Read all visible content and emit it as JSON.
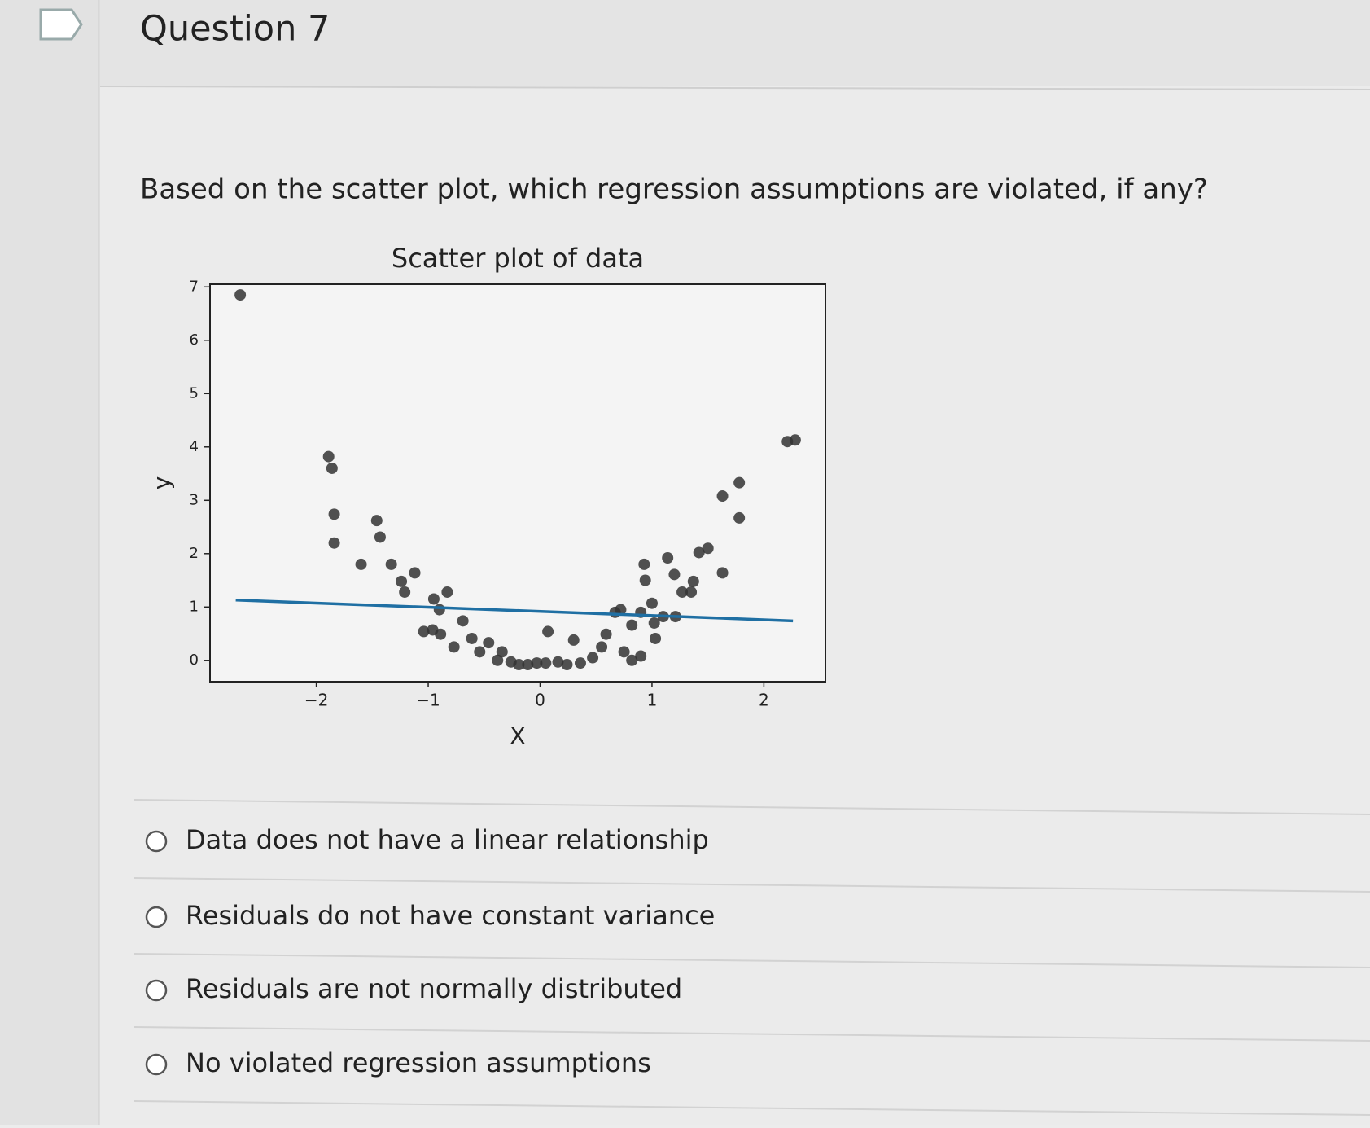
{
  "header": {
    "title": "Question 7"
  },
  "question": "Based on the scatter plot, which regression assumptions are violated, if any?",
  "chart_data": {
    "type": "scatter",
    "title": "Scatter plot of data",
    "x_label": "X",
    "y_label": "y",
    "x": [
      -2.68,
      -1.89,
      -1.86,
      -1.84,
      -1.84,
      -1.6,
      -1.46,
      -1.43,
      -1.33,
      -1.24,
      -1.21,
      -1.12,
      -0.95,
      -0.83,
      -0.9,
      -1.04,
      -0.96,
      -0.89,
      -0.77,
      -0.69,
      -0.61,
      -0.54,
      -0.46,
      -0.38,
      -0.34,
      -0.26,
      -0.19,
      -0.11,
      -0.03,
      0.07,
      0.05,
      0.16,
      0.24,
      0.3,
      0.36,
      0.47,
      0.55,
      0.59,
      0.67,
      0.72,
      0.75,
      0.82,
      0.9,
      0.82,
      0.9,
      0.93,
      0.94,
      1.0,
      1.03,
      1.02,
      1.1,
      1.14,
      1.2,
      1.21,
      1.27,
      1.35,
      1.37,
      1.42,
      1.5,
      1.63,
      1.63,
      1.78,
      1.78,
      2.21,
      2.28
    ],
    "values": [
      6.85,
      3.82,
      3.6,
      2.74,
      2.2,
      1.8,
      2.62,
      2.31,
      1.8,
      1.48,
      1.28,
      1.64,
      1.15,
      1.28,
      0.95,
      0.54,
      0.57,
      0.49,
      0.25,
      0.74,
      0.41,
      0.16,
      0.33,
      0.0,
      0.16,
      -0.03,
      -0.08,
      -0.08,
      -0.05,
      0.54,
      -0.05,
      -0.03,
      -0.08,
      0.38,
      -0.05,
      0.05,
      0.25,
      0.49,
      0.9,
      0.95,
      0.16,
      0.0,
      0.08,
      0.66,
      0.9,
      1.8,
      1.5,
      1.07,
      0.41,
      0.7,
      0.82,
      1.92,
      1.61,
      0.82,
      1.28,
      1.28,
      1.48,
      2.02,
      2.1,
      1.64,
      3.08,
      3.33,
      2.67,
      4.1,
      4.13
    ],
    "color": "#333333",
    "fit_line": {
      "x": [
        -2.72,
        2.26
      ],
      "values": [
        1.13,
        0.74
      ],
      "color": "#1f6fa3"
    },
    "xlim": [
      -2.95,
      2.55
    ],
    "ylim": [
      -0.4,
      7.05
    ],
    "xticks": [
      {
        "value": -2,
        "label": "−2"
      },
      {
        "value": -1,
        "label": "−1"
      },
      0,
      1,
      2
    ],
    "yticks": [
      0,
      1,
      2,
      3,
      4,
      5,
      6,
      7
    ]
  },
  "options": [
    "Data does not have a linear relationship",
    "Residuals do not have constant variance",
    "Residuals are not normally distributed",
    "No violated regression assumptions"
  ]
}
